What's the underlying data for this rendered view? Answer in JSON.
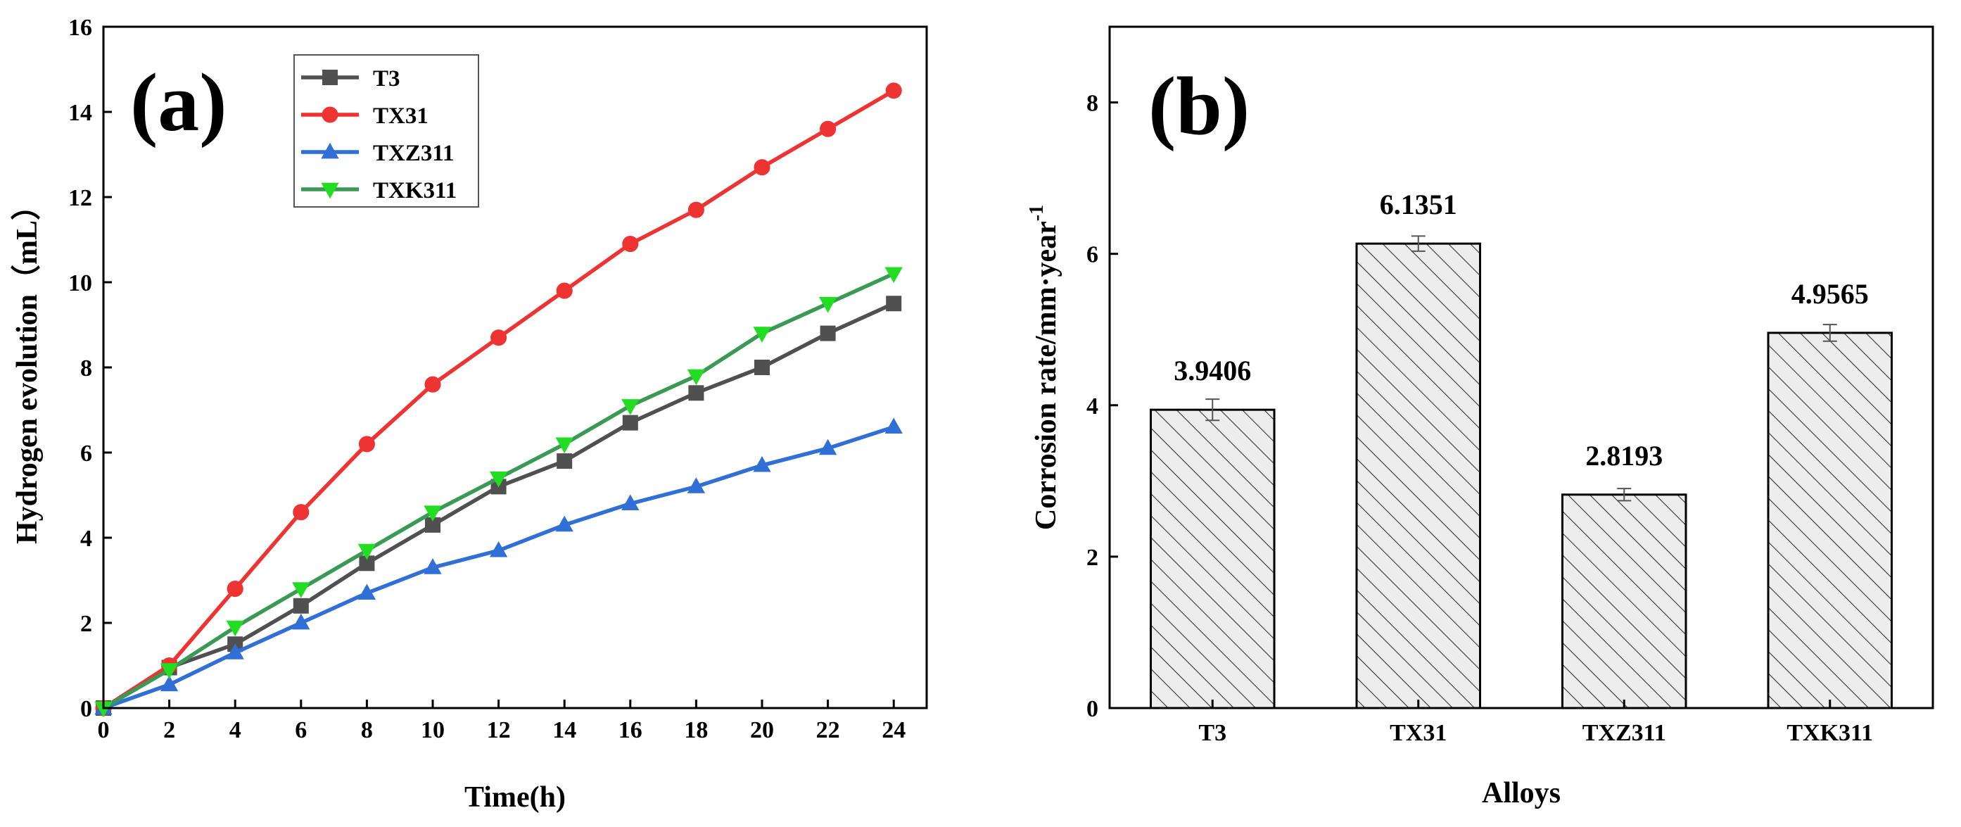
{
  "chart_data": [
    {
      "panel": "(a)",
      "type": "line",
      "xlabel": "Time(h)",
      "ylabel": "Hydrogen evolution（mL）",
      "xlim": [
        0,
        25
      ],
      "ylim": [
        0,
        16
      ],
      "xticks": [
        0,
        2,
        4,
        6,
        8,
        10,
        12,
        14,
        16,
        18,
        20,
        22,
        24
      ],
      "yticks": [
        0,
        2,
        4,
        6,
        8,
        10,
        12,
        14,
        16
      ],
      "legend_position": "top-left",
      "x": [
        0,
        2,
        4,
        6,
        8,
        10,
        12,
        14,
        16,
        18,
        20,
        22,
        24
      ],
      "series": [
        {
          "name": "T3",
          "color": "#505050",
          "marker": "square",
          "values": [
            0,
            0.95,
            1.5,
            2.4,
            3.4,
            4.3,
            5.2,
            5.8,
            6.7,
            7.4,
            8.0,
            8.8,
            9.5
          ]
        },
        {
          "name": "TX31",
          "color": "#ee3333",
          "marker": "circle",
          "values": [
            0,
            1.0,
            2.8,
            4.6,
            6.2,
            7.6,
            8.7,
            9.8,
            10.9,
            11.7,
            12.7,
            13.6,
            14.5
          ]
        },
        {
          "name": "TXZ311",
          "color": "#2f6fd6",
          "marker": "triangle-up",
          "values": [
            0,
            0.55,
            1.3,
            2.0,
            2.7,
            3.3,
            3.7,
            4.3,
            4.8,
            5.2,
            5.7,
            6.1,
            6.6
          ]
        },
        {
          "name": "TXK311",
          "color": "#3a9a55",
          "marker_color": "#22dd22",
          "marker": "triangle-down",
          "values": [
            0,
            0.9,
            1.9,
            2.8,
            3.7,
            4.6,
            5.4,
            6.2,
            7.1,
            7.8,
            8.8,
            9.5,
            10.2
          ]
        }
      ]
    },
    {
      "panel": "(b)",
      "type": "bar",
      "xlabel": "Alloys",
      "ylabel": "Corrosion rate/mm·year",
      "ylabel_superscript": "-1",
      "ylim": [
        0,
        9
      ],
      "yticks": [
        0,
        2,
        4,
        6,
        8
      ],
      "categories": [
        "T3",
        "TX31",
        "TXZ311",
        "TXK311"
      ],
      "values": [
        3.9406,
        6.1351,
        2.8193,
        4.9565
      ],
      "value_labels": [
        "3.9406",
        "6.1351",
        "2.8193",
        "4.9565"
      ],
      "errors": [
        0.14,
        0.1,
        0.08,
        0.11
      ],
      "bar_fill": "hatched"
    }
  ]
}
